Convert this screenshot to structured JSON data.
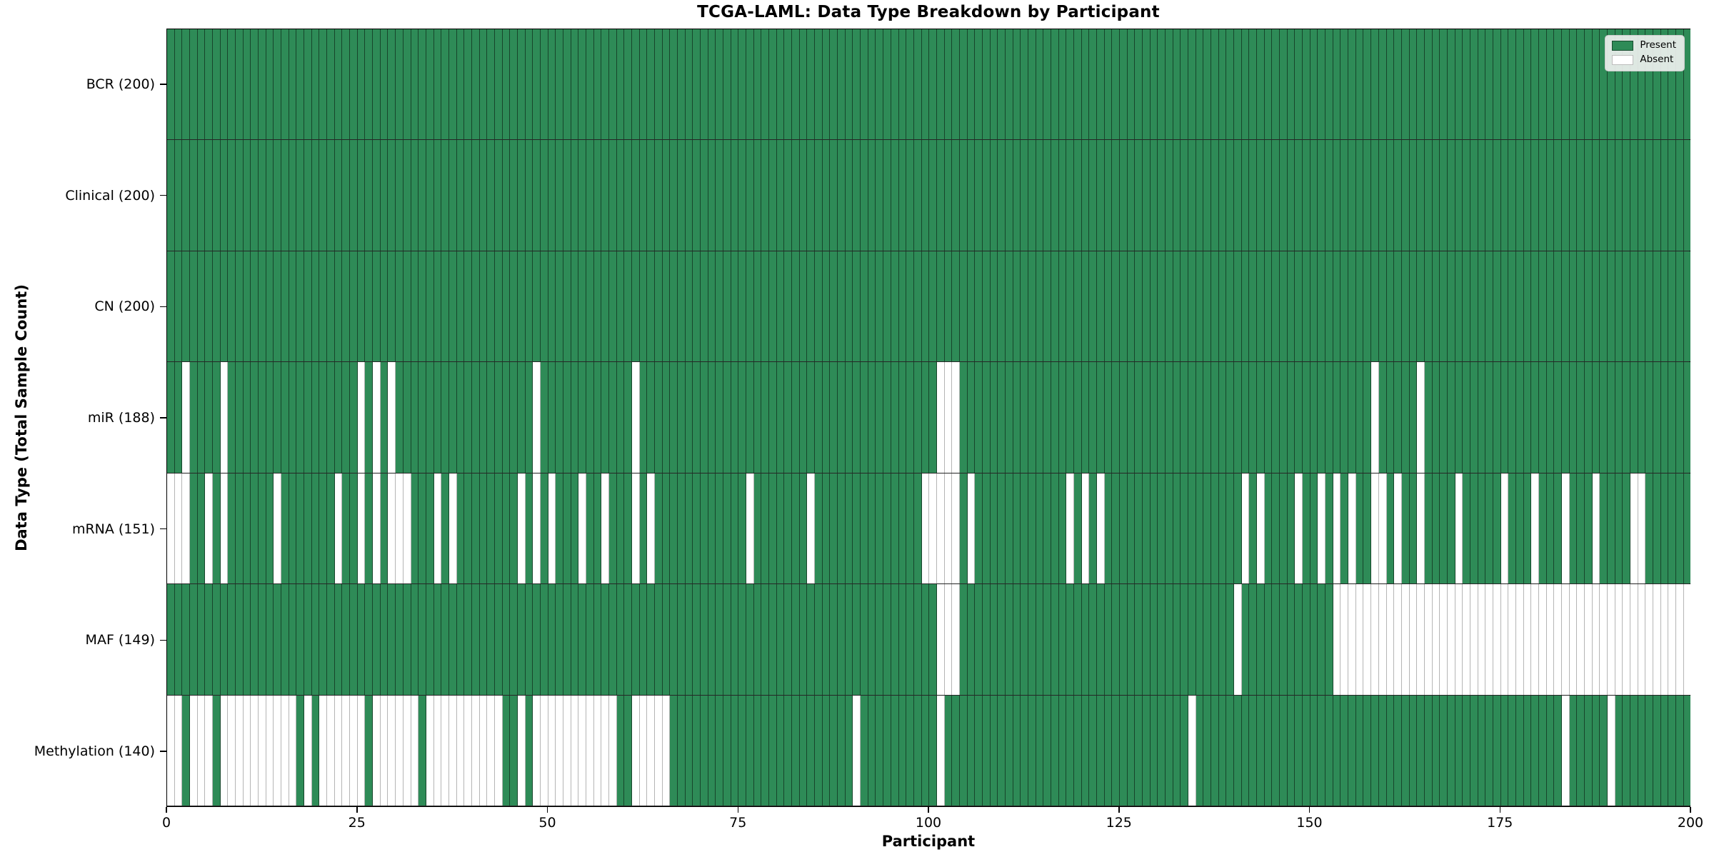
{
  "chart_data": {
    "type": "heatmap",
    "title": "TCGA-LAML: Data Type Breakdown by Participant",
    "xlabel": "Participant",
    "ylabel": "Data Type (Total Sample Count)",
    "x_ticks": [
      0,
      25,
      50,
      75,
      100,
      125,
      150,
      175,
      200
    ],
    "x_range": [
      0,
      200
    ],
    "n_participants": 200,
    "grid": false,
    "legend": {
      "position": "upper right",
      "entries": [
        {
          "label": "Present",
          "color": "#2e8b57"
        },
        {
          "label": "Absent",
          "color": "#ffffff"
        }
      ]
    },
    "rows": [
      {
        "label": "BCR (200)",
        "name": "BCR",
        "present_count": 200,
        "absent": []
      },
      {
        "label": "Clinical (200)",
        "name": "Clinical",
        "present_count": 200,
        "absent": []
      },
      {
        "label": "CN (200)",
        "name": "CN",
        "present_count": 200,
        "absent": []
      },
      {
        "label": "miR (188)",
        "name": "miR",
        "present_count": 188,
        "absent": [
          2,
          7,
          25,
          27,
          29,
          48,
          61,
          101,
          102,
          103,
          158,
          164
        ]
      },
      {
        "label": "mRNA (151)",
        "name": "mRNA",
        "present_count": 151,
        "absent": [
          0,
          1,
          2,
          5,
          7,
          14,
          22,
          25,
          27,
          29,
          30,
          31,
          35,
          37,
          46,
          48,
          50,
          54,
          57,
          61,
          63,
          76,
          84,
          99,
          100,
          101,
          102,
          103,
          105,
          118,
          120,
          122,
          141,
          143,
          148,
          151,
          153,
          155,
          158,
          159,
          161,
          164,
          169,
          175,
          179,
          183,
          187,
          192,
          193
        ]
      },
      {
        "label": "MAF (149)",
        "name": "MAF",
        "present_count": 149,
        "absent": [
          101,
          102,
          103,
          140,
          153,
          154,
          155,
          156,
          157,
          158,
          159,
          160,
          161,
          162,
          163,
          164,
          165,
          166,
          167,
          168,
          169,
          170,
          171,
          172,
          173,
          174,
          175,
          176,
          177,
          178,
          179,
          180,
          181,
          182,
          183,
          184,
          185,
          186,
          187,
          188,
          189,
          190,
          191,
          192,
          193,
          194,
          195,
          196,
          197,
          198,
          199
        ]
      },
      {
        "label": "Methylation (140)",
        "name": "Methylation",
        "present_count": 140,
        "absent": [
          0,
          1,
          3,
          4,
          5,
          7,
          8,
          9,
          10,
          11,
          12,
          13,
          14,
          15,
          16,
          18,
          20,
          21,
          22,
          23,
          24,
          25,
          27,
          28,
          29,
          30,
          31,
          32,
          34,
          35,
          36,
          37,
          38,
          39,
          40,
          41,
          42,
          43,
          46,
          48,
          49,
          50,
          51,
          52,
          53,
          54,
          55,
          56,
          57,
          58,
          61,
          62,
          63,
          64,
          65,
          90,
          101,
          134,
          183,
          189
        ]
      }
    ]
  }
}
